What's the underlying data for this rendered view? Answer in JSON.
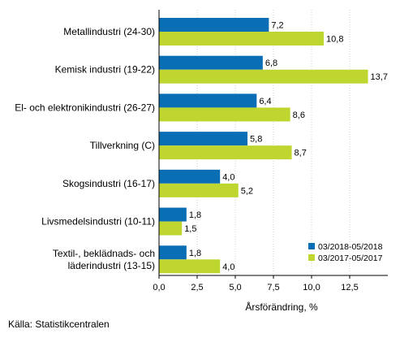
{
  "chart_data": {
    "type": "bar",
    "orientation": "horizontal",
    "categories": [
      [
        "Metallindustri (24-30)"
      ],
      [
        "Kemisk industri (19-22)"
      ],
      [
        "El- och elektronikindustri (26-27)"
      ],
      [
        "Tillverkning (C)"
      ],
      [
        "Skogsindustri (16-17)"
      ],
      [
        "Livsmedelsindustri (10-11)"
      ],
      [
        "Textil-, beklädnads- och",
        "läderindustri (13-15)"
      ]
    ],
    "series": [
      {
        "name": "03/2018-05/2018",
        "color": "#0a6eb4",
        "values": [
          7.2,
          6.8,
          6.4,
          5.8,
          4.0,
          1.8,
          1.8
        ],
        "labels": [
          "7,2",
          "6,8",
          "6,4",
          "5,8",
          "4,0",
          "1,8",
          "1,8"
        ]
      },
      {
        "name": "03/2017-05/2017",
        "color": "#bfd630",
        "values": [
          10.8,
          13.7,
          8.6,
          8.7,
          5.2,
          1.5,
          4.0
        ],
        "labels": [
          "10,8",
          "13,7",
          "8,6",
          "8,7",
          "5,2",
          "1,5",
          "4,0"
        ]
      }
    ],
    "xlim": [
      0,
      15
    ],
    "xticks": [
      0,
      2.5,
      5,
      7.5,
      10,
      12.5
    ],
    "xtick_labels": [
      "0,0",
      "2,5",
      "5,0",
      "7,5",
      "10,0",
      "12,5"
    ],
    "xlabel": "Årsförändring, %",
    "grid": "vertical",
    "legend_position": "bottom-right"
  },
  "source_text": "Källa: Statistikcentralen"
}
